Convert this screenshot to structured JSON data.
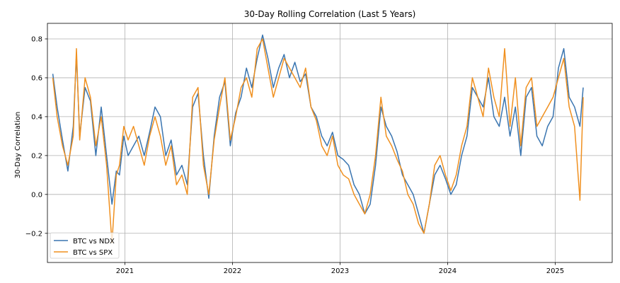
{
  "chart_data": {
    "type": "line",
    "title": "30-Day Rolling Correlation (Last 5 Years)",
    "xlabel": "",
    "ylabel": "30-Day Correlation",
    "x_ticks": [
      "2021",
      "2022",
      "2023",
      "2024",
      "2025"
    ],
    "y_ticks": [
      "−0.2",
      "0.0",
      "0.2",
      "0.4",
      "0.6",
      "0.8"
    ],
    "ylim": [
      -0.35,
      0.88
    ],
    "xlim": [
      2020.28,
      2025.53
    ],
    "grid": true,
    "legend_position": "lower-left",
    "series": [
      {
        "name": "BTC vs NDX",
        "color": "#3a75b0",
        "x": [
          2020.33,
          2020.37,
          2020.42,
          2020.47,
          2020.52,
          2020.55,
          2020.58,
          2020.63,
          2020.68,
          2020.73,
          2020.78,
          2020.83,
          2020.88,
          2020.92,
          2020.95,
          2020.99,
          2021.03,
          2021.08,
          2021.13,
          2021.18,
          2021.23,
          2021.28,
          2021.33,
          2021.38,
          2021.43,
          2021.48,
          2021.53,
          2021.58,
          2021.63,
          2021.68,
          2021.73,
          2021.78,
          2021.83,
          2021.88,
          2021.93,
          2021.98,
          2022.03,
          2022.08,
          2022.13,
          2022.18,
          2022.23,
          2022.28,
          2022.33,
          2022.38,
          2022.43,
          2022.48,
          2022.53,
          2022.58,
          2022.63,
          2022.68,
          2022.73,
          2022.78,
          2022.83,
          2022.88,
          2022.93,
          2022.98,
          2023.03,
          2023.08,
          2023.13,
          2023.18,
          2023.23,
          2023.28,
          2023.33,
          2023.38,
          2023.43,
          2023.48,
          2023.53,
          2023.58,
          2023.63,
          2023.68,
          2023.73,
          2023.78,
          2023.83,
          2023.88,
          2023.93,
          2023.98,
          2024.03,
          2024.08,
          2024.13,
          2024.18,
          2024.23,
          2024.28,
          2024.33,
          2024.38,
          2024.43,
          2024.48,
          2024.53,
          2024.58,
          2024.63,
          2024.68,
          2024.73,
          2024.78,
          2024.83,
          2024.88,
          2024.93,
          2024.98,
          2025.03,
          2025.08,
          2025.13,
          2025.18,
          2025.23,
          2025.26
        ],
        "values": [
          0.62,
          0.45,
          0.28,
          0.12,
          0.35,
          0.72,
          0.3,
          0.55,
          0.48,
          0.2,
          0.45,
          0.2,
          -0.05,
          0.12,
          0.1,
          0.3,
          0.2,
          0.25,
          0.3,
          0.2,
          0.32,
          0.45,
          0.4,
          0.2,
          0.28,
          0.1,
          0.15,
          0.05,
          0.45,
          0.52,
          0.2,
          -0.02,
          0.3,
          0.5,
          0.58,
          0.25,
          0.42,
          0.5,
          0.65,
          0.55,
          0.7,
          0.82,
          0.7,
          0.55,
          0.65,
          0.72,
          0.6,
          0.68,
          0.58,
          0.62,
          0.45,
          0.4,
          0.3,
          0.25,
          0.32,
          0.2,
          0.18,
          0.15,
          0.05,
          0.0,
          -0.1,
          -0.05,
          0.15,
          0.45,
          0.35,
          0.3,
          0.22,
          0.1,
          0.05,
          0.0,
          -0.1,
          -0.2,
          -0.05,
          0.1,
          0.15,
          0.08,
          0.0,
          0.05,
          0.2,
          0.3,
          0.55,
          0.5,
          0.45,
          0.6,
          0.4,
          0.35,
          0.5,
          0.3,
          0.45,
          0.2,
          0.5,
          0.55,
          0.3,
          0.25,
          0.35,
          0.4,
          0.65,
          0.75,
          0.5,
          0.45,
          0.35,
          0.55
        ]
      },
      {
        "name": "BTC vs SPX",
        "color": "#f0901f",
        "x": [
          2020.33,
          2020.37,
          2020.42,
          2020.47,
          2020.52,
          2020.55,
          2020.58,
          2020.63,
          2020.68,
          2020.73,
          2020.78,
          2020.83,
          2020.88,
          2020.92,
          2020.95,
          2020.99,
          2021.03,
          2021.08,
          2021.13,
          2021.18,
          2021.23,
          2021.28,
          2021.33,
          2021.38,
          2021.43,
          2021.48,
          2021.53,
          2021.58,
          2021.63,
          2021.68,
          2021.73,
          2021.78,
          2021.83,
          2021.88,
          2021.93,
          2021.98,
          2022.03,
          2022.08,
          2022.13,
          2022.18,
          2022.23,
          2022.28,
          2022.33,
          2022.38,
          2022.43,
          2022.48,
          2022.53,
          2022.58,
          2022.63,
          2022.68,
          2022.73,
          2022.78,
          2022.83,
          2022.88,
          2022.93,
          2022.98,
          2023.03,
          2023.08,
          2023.13,
          2023.18,
          2023.23,
          2023.28,
          2023.33,
          2023.38,
          2023.43,
          2023.48,
          2023.53,
          2023.58,
          2023.63,
          2023.68,
          2023.73,
          2023.78,
          2023.83,
          2023.88,
          2023.93,
          2023.98,
          2024.03,
          2024.08,
          2024.13,
          2024.18,
          2024.23,
          2024.28,
          2024.33,
          2024.38,
          2024.43,
          2024.48,
          2024.53,
          2024.58,
          2024.63,
          2024.68,
          2024.73,
          2024.78,
          2024.83,
          2024.88,
          2024.93,
          2024.98,
          2025.03,
          2025.08,
          2025.13,
          2025.18,
          2025.23,
          2025.26
        ],
        "values": [
          0.6,
          0.4,
          0.25,
          0.15,
          0.3,
          0.75,
          0.28,
          0.6,
          0.5,
          0.25,
          0.4,
          0.15,
          -0.25,
          0.1,
          0.15,
          0.35,
          0.28,
          0.35,
          0.25,
          0.15,
          0.3,
          0.4,
          0.3,
          0.15,
          0.25,
          0.05,
          0.1,
          0.0,
          0.5,
          0.55,
          0.15,
          0.0,
          0.28,
          0.45,
          0.6,
          0.28,
          0.4,
          0.55,
          0.6,
          0.5,
          0.75,
          0.8,
          0.65,
          0.5,
          0.6,
          0.7,
          0.65,
          0.6,
          0.55,
          0.65,
          0.45,
          0.38,
          0.25,
          0.2,
          0.3,
          0.15,
          0.1,
          0.08,
          0.0,
          -0.05,
          -0.1,
          0.0,
          0.2,
          0.5,
          0.3,
          0.25,
          0.18,
          0.12,
          0.0,
          -0.05,
          -0.15,
          -0.2,
          -0.05,
          0.15,
          0.2,
          0.1,
          0.02,
          0.1,
          0.25,
          0.35,
          0.6,
          0.5,
          0.4,
          0.65,
          0.5,
          0.4,
          0.75,
          0.35,
          0.6,
          0.25,
          0.55,
          0.6,
          0.35,
          0.4,
          0.45,
          0.5,
          0.6,
          0.7,
          0.45,
          0.35,
          -0.03,
          0.5
        ]
      }
    ]
  }
}
